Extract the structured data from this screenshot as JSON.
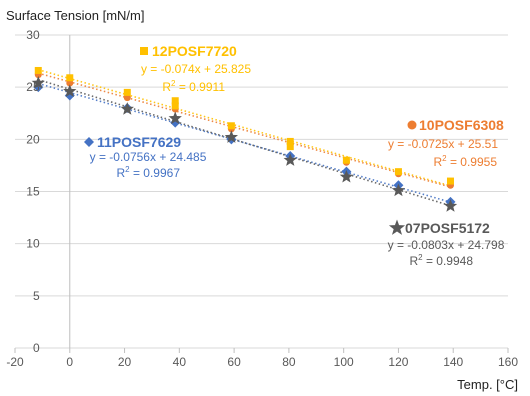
{
  "chart_data": {
    "type": "scatter",
    "ylabel": "Surface Tension [mN/m]",
    "xlabel": "Temp. [°C]",
    "xlim": [
      -20,
      160
    ],
    "ylim": [
      0,
      30
    ],
    "xticks": [
      "-20",
      "0",
      "20",
      "40",
      "60",
      "80",
      "100",
      "120",
      "140",
      "160"
    ],
    "yticks": [
      "0",
      "5",
      "10",
      "15",
      "20",
      "25",
      "30"
    ],
    "grid": "horizontal",
    "trendlines": "dotted linear",
    "series": [
      {
        "name": "12POSF7720",
        "color": "#FFC000",
        "marker": "square",
        "equation": "y = -0.074x + 25.825",
        "r2_prefix": "R",
        "r2_value": " = 0.9911",
        "slope": -0.074,
        "intercept": 25.825,
        "points": [
          [
            -11.5,
            26.6
          ],
          [
            0,
            25.9
          ],
          [
            21,
            24.5
          ],
          [
            38.5,
            23.7
          ],
          [
            38.5,
            23.2
          ],
          [
            59,
            21.3
          ],
          [
            80.5,
            19.8
          ],
          [
            80.5,
            19.3
          ],
          [
            101,
            18.0
          ],
          [
            120,
            16.9
          ],
          [
            139,
            16.0
          ]
        ]
      },
      {
        "name": "10POSF6308",
        "color": "#ED7D31",
        "marker": "circle",
        "equation": "y = -0.0725x + 25.51",
        "r2_prefix": "R",
        "r2_value": " = 0.9955",
        "slope": -0.0725,
        "intercept": 25.51,
        "points": [
          [
            -11.5,
            26.2
          ],
          [
            0,
            25.4
          ],
          [
            21,
            24.0
          ],
          [
            38.5,
            22.9
          ],
          [
            59,
            21.0
          ],
          [
            80.5,
            19.6
          ],
          [
            101,
            17.8
          ],
          [
            120,
            16.7
          ],
          [
            139,
            15.6
          ]
        ]
      },
      {
        "name": "11POSF7629",
        "color": "#4472C4",
        "marker": "diamond",
        "equation": "y = -0.0756x + 24.485",
        "r2_prefix": "R",
        "r2_value": " = 0.9967",
        "slope": -0.0756,
        "intercept": 24.485,
        "points": [
          [
            -11.5,
            25.0
          ],
          [
            0,
            24.2
          ],
          [
            21,
            23.0
          ],
          [
            38.5,
            21.6
          ],
          [
            59,
            20.0
          ],
          [
            80.5,
            18.4
          ],
          [
            101,
            16.9
          ],
          [
            120,
            15.6
          ],
          [
            139,
            14.0
          ]
        ]
      },
      {
        "name": "07POSF5172",
        "color": "#595959",
        "marker": "star",
        "equation": "y = -0.0803x + 24.798",
        "r2_prefix": "R",
        "r2_value": " = 0.9948",
        "slope": -0.0803,
        "intercept": 24.798,
        "points": [
          [
            -11.5,
            25.4
          ],
          [
            0,
            24.6
          ],
          [
            21,
            22.9
          ],
          [
            38.5,
            22.0
          ],
          [
            59,
            20.2
          ],
          [
            80.5,
            18.0
          ],
          [
            101,
            16.4
          ],
          [
            120,
            15.1
          ],
          [
            139,
            13.6
          ]
        ]
      }
    ]
  }
}
